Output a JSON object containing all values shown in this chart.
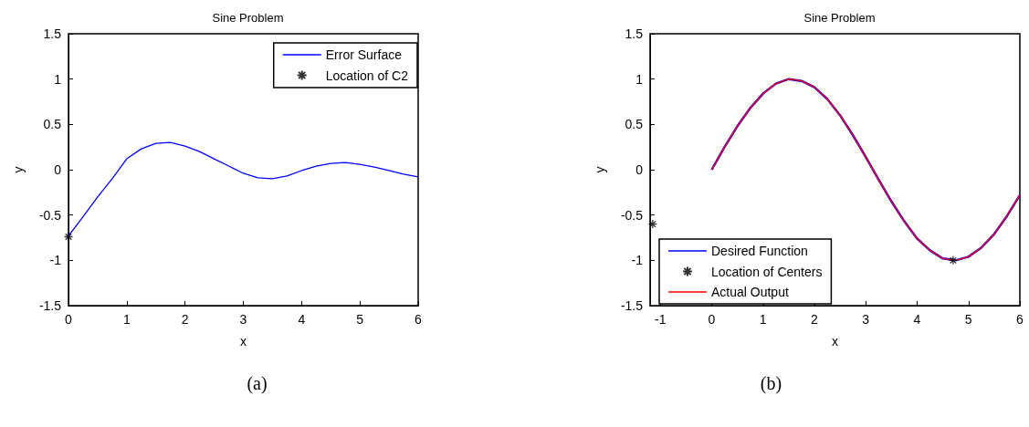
{
  "chart_data": [
    {
      "type": "line",
      "title": "Sine Problem",
      "xlabel": "x",
      "ylabel": "y",
      "xlim": [
        0,
        6
      ],
      "xticks": [
        0,
        1,
        2,
        3,
        4,
        5,
        6
      ],
      "ylim": [
        -1.5,
        1.5
      ],
      "yticks": [
        -1.5,
        -1,
        -0.5,
        0,
        0.5,
        1,
        1.5
      ],
      "grid": false,
      "legend": "top right",
      "annotations": [
        "(a)"
      ],
      "series": [
        {
          "name": "Error Surface",
          "color": "#0000ff",
          "marker": "none",
          "x": [
            0,
            0.25,
            0.5,
            0.75,
            1,
            1.25,
            1.5,
            1.75,
            2,
            2.25,
            2.5,
            2.75,
            3,
            3.25,
            3.5,
            3.75,
            4,
            4.25,
            4.5,
            4.75,
            5,
            5.25,
            5.5,
            5.75,
            6
          ],
          "values": [
            -0.73,
            -0.52,
            -0.3,
            -0.1,
            0.12,
            0.23,
            0.29,
            0.3,
            0.26,
            0.2,
            0.12,
            0.04,
            -0.04,
            -0.09,
            -0.1,
            -0.07,
            -0.01,
            0.04,
            0.07,
            0.08,
            0.06,
            0.03,
            -0.01,
            -0.05,
            -0.08
          ]
        },
        {
          "name": "Location of C2",
          "type": "scatter",
          "color": "#000000",
          "marker": "cross",
          "x": [
            0
          ],
          "values": [
            -0.74
          ]
        }
      ]
    },
    {
      "type": "line",
      "title": "Sine Problem",
      "xlabel": "x",
      "ylabel": "y",
      "xlim": [
        -1.2,
        6
      ],
      "xticks": [
        -1,
        0,
        1,
        2,
        3,
        4,
        5,
        6
      ],
      "ylim": [
        -1.5,
        1.5
      ],
      "yticks": [
        -1.5,
        -1,
        -0.5,
        0,
        0.5,
        1,
        1.5
      ],
      "grid": false,
      "legend": "bottom left",
      "annotations": [
        "(b)"
      ],
      "series": [
        {
          "name": "Desired Function",
          "color": "#0000ff",
          "marker": "none",
          "x": [
            0,
            0.25,
            0.5,
            0.75,
            1,
            1.25,
            1.5,
            1.75,
            2,
            2.25,
            2.5,
            2.75,
            3,
            3.25,
            3.5,
            3.75,
            4,
            4.25,
            4.5,
            4.75,
            5,
            5.25,
            5.5,
            5.75,
            6
          ],
          "values": [
            0,
            0.25,
            0.48,
            0.68,
            0.84,
            0.95,
            1.0,
            0.98,
            0.91,
            0.78,
            0.6,
            0.38,
            0.14,
            -0.11,
            -0.35,
            -0.57,
            -0.76,
            -0.89,
            -0.98,
            -1.0,
            -0.96,
            -0.86,
            -0.71,
            -0.51,
            -0.28
          ]
        },
        {
          "name": "Location of Centers",
          "type": "scatter",
          "color": "#000000",
          "marker": "cross",
          "x": [
            -1.15,
            4.7
          ],
          "values": [
            -0.6,
            -1.0
          ]
        },
        {
          "name": "Actual Output",
          "color": "#ff0000",
          "marker": "none",
          "x": [
            0,
            0.25,
            0.5,
            0.75,
            1,
            1.25,
            1.5,
            1.75,
            2,
            2.25,
            2.5,
            2.75,
            3,
            3.25,
            3.5,
            3.75,
            4,
            4.25,
            4.5,
            4.75,
            5,
            5.25,
            5.5,
            5.75,
            6
          ],
          "values": [
            0,
            0.25,
            0.48,
            0.68,
            0.84,
            0.95,
            1.0,
            0.98,
            0.91,
            0.78,
            0.6,
            0.38,
            0.14,
            -0.11,
            -0.35,
            -0.57,
            -0.76,
            -0.89,
            -0.98,
            -1.0,
            -0.96,
            -0.86,
            -0.71,
            -0.51,
            -0.28
          ]
        }
      ]
    }
  ]
}
